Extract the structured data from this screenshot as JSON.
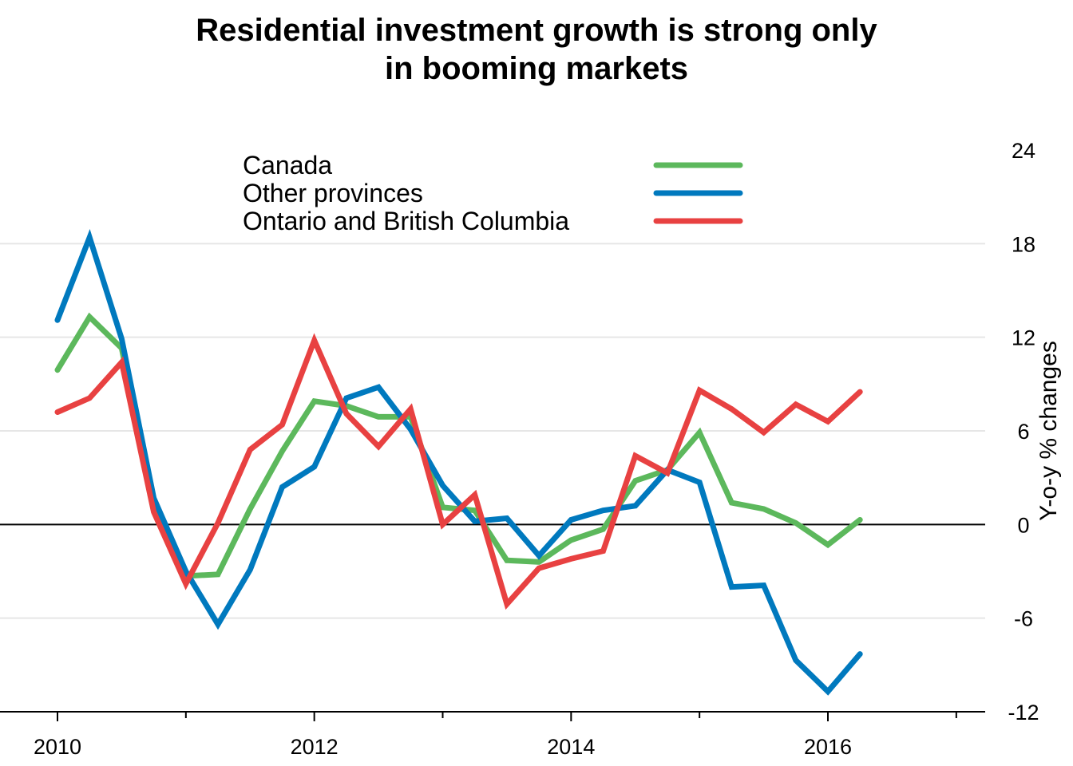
{
  "chart_data": {
    "type": "line",
    "title_lines": [
      "Residential investment growth is strong only",
      "in booming markets"
    ],
    "ylabel": "Y-o-y % changes",
    "y_axis_side": "right",
    "ylim": [
      -12,
      24
    ],
    "yticks": [
      -12,
      -6,
      0,
      6,
      12,
      18,
      24
    ],
    "xlim": [
      2009.6,
      2017.2
    ],
    "xticks_major": [
      2010,
      2012,
      2014,
      2016
    ],
    "xticks_minor": [
      2011,
      2013,
      2015,
      2017
    ],
    "grid": "horizontal",
    "zero_line": true,
    "legend_position": "top-left",
    "x": [
      2010.0,
      2010.25,
      2010.5,
      2010.75,
      2011.0,
      2011.25,
      2011.5,
      2011.75,
      2012.0,
      2012.25,
      2012.5,
      2012.75,
      2013.0,
      2013.25,
      2013.5,
      2013.75,
      2014.0,
      2014.25,
      2014.5,
      2014.75,
      2015.0,
      2015.25,
      2015.5,
      2015.75,
      2016.0,
      2016.25
    ],
    "series": [
      {
        "name": "Canada",
        "color": "#5cb85c",
        "values": [
          9.9,
          13.3,
          11.3,
          1.2,
          -3.3,
          -3.2,
          1.0,
          4.7,
          7.9,
          7.6,
          6.9,
          6.9,
          1.1,
          0.9,
          -2.3,
          -2.4,
          -1.0,
          -0.3,
          2.8,
          3.5,
          5.9,
          1.4,
          1.0,
          0.1,
          -1.3,
          0.3
        ]
      },
      {
        "name": "Other provinces",
        "color": "#0079be",
        "values": [
          13.1,
          18.4,
          11.9,
          1.7,
          -3.0,
          -6.4,
          -2.9,
          2.4,
          3.7,
          8.1,
          8.8,
          6.1,
          2.5,
          0.2,
          0.4,
          -2.0,
          0.3,
          0.9,
          1.2,
          3.5,
          2.7,
          -4.0,
          -3.9,
          -8.7,
          -10.7,
          -8.3
        ]
      },
      {
        "name": "Ontario and British Columbia",
        "color": "#e84141",
        "values": [
          7.2,
          8.1,
          10.4,
          0.8,
          -3.8,
          0.1,
          4.8,
          6.4,
          11.8,
          7.1,
          5.0,
          7.4,
          0.0,
          1.9,
          -5.1,
          -2.8,
          -2.2,
          -1.7,
          4.4,
          3.3,
          8.6,
          7.4,
          5.9,
          7.7,
          6.6,
          8.5
        ]
      }
    ]
  }
}
